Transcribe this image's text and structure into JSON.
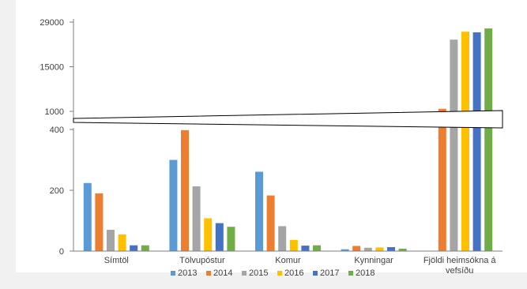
{
  "chart_data": {
    "type": "bar",
    "title": "",
    "xlabel": "",
    "ylabel": "",
    "broken_axis": true,
    "upper_axis": {
      "ticks": [
        1000,
        15000,
        29000
      ],
      "ylim": [
        1000,
        29000
      ]
    },
    "lower_axis": {
      "ticks": [
        0,
        200,
        400
      ],
      "ylim": [
        0,
        400
      ]
    },
    "categories": [
      "Símtöl",
      "Tölvupóstur",
      "Komur",
      "Kynningar",
      "Fjöldi heimsókna á vefsíðu"
    ],
    "category_label_lines": [
      [
        "Símtöl"
      ],
      [
        "Tölvupóstur"
      ],
      [
        "Komur"
      ],
      [
        "Kynningar"
      ],
      [
        "Fjöldi heimsókna á",
        "vefsíðu"
      ]
    ],
    "series": [
      {
        "name": "2013",
        "color": "#5b9bd5",
        "values": [
          224,
          300,
          261,
          6,
          null
        ]
      },
      {
        "name": "2014",
        "color": "#ed7d31",
        "values": [
          190,
          398,
          183,
          17,
          1800
        ]
      },
      {
        "name": "2015",
        "color": "#a5a5a5",
        "values": [
          70,
          213,
          82,
          11,
          23500
        ]
      },
      {
        "name": "2016",
        "color": "#ffc000",
        "values": [
          55,
          108,
          37,
          12,
          26000
        ]
      },
      {
        "name": "2017",
        "color": "#4472c4",
        "values": [
          19,
          92,
          18,
          13,
          25800
        ]
      },
      {
        "name": "2018",
        "color": "#70ad47",
        "values": [
          19,
          80,
          19,
          8,
          27000
        ]
      }
    ],
    "legend_position": "bottom",
    "grid": false
  }
}
